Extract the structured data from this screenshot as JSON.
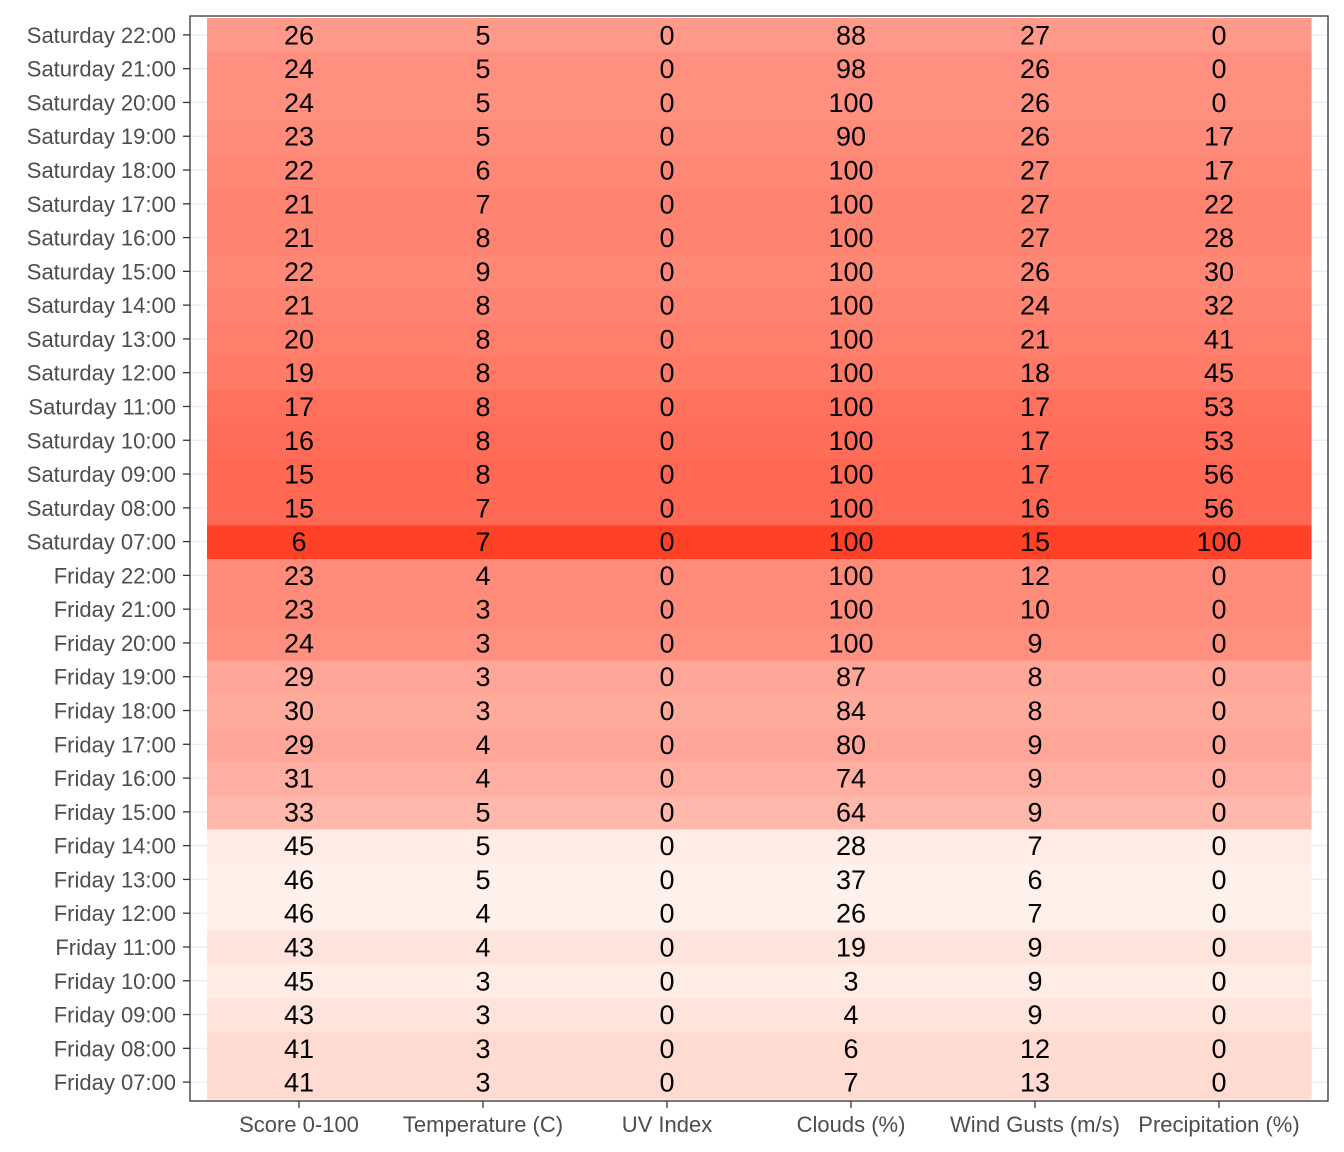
{
  "chart_data": {
    "type": "heatmap",
    "title": "",
    "xlabel": "",
    "ylabel": "",
    "columns": [
      "Score 0-100",
      "Temperature (C)",
      "UV Index",
      "Clouds (%)",
      "Wind Gusts (m/s)",
      "Precipitation (%)"
    ],
    "rows": [
      {
        "label": "Friday 07:00",
        "values": [
          41,
          3,
          0,
          7,
          13,
          0
        ]
      },
      {
        "label": "Friday 08:00",
        "values": [
          41,
          3,
          0,
          6,
          12,
          0
        ]
      },
      {
        "label": "Friday 09:00",
        "values": [
          43,
          3,
          0,
          4,
          9,
          0
        ]
      },
      {
        "label": "Friday 10:00",
        "values": [
          45,
          3,
          0,
          3,
          9,
          0
        ]
      },
      {
        "label": "Friday 11:00",
        "values": [
          43,
          4,
          0,
          19,
          9,
          0
        ]
      },
      {
        "label": "Friday 12:00",
        "values": [
          46,
          4,
          0,
          26,
          7,
          0
        ]
      },
      {
        "label": "Friday 13:00",
        "values": [
          46,
          5,
          0,
          37,
          6,
          0
        ]
      },
      {
        "label": "Friday 14:00",
        "values": [
          45,
          5,
          0,
          28,
          7,
          0
        ]
      },
      {
        "label": "Friday 15:00",
        "values": [
          33,
          5,
          0,
          64,
          9,
          0
        ]
      },
      {
        "label": "Friday 16:00",
        "values": [
          31,
          4,
          0,
          74,
          9,
          0
        ]
      },
      {
        "label": "Friday 17:00",
        "values": [
          29,
          4,
          0,
          80,
          9,
          0
        ]
      },
      {
        "label": "Friday 18:00",
        "values": [
          30,
          3,
          0,
          84,
          8,
          0
        ]
      },
      {
        "label": "Friday 19:00",
        "values": [
          29,
          3,
          0,
          87,
          8,
          0
        ]
      },
      {
        "label": "Friday 20:00",
        "values": [
          24,
          3,
          0,
          100,
          9,
          0
        ]
      },
      {
        "label": "Friday 21:00",
        "values": [
          23,
          3,
          0,
          100,
          10,
          0
        ]
      },
      {
        "label": "Friday 22:00",
        "values": [
          23,
          4,
          0,
          100,
          12,
          0
        ]
      },
      {
        "label": "Saturday 07:00",
        "values": [
          6,
          7,
          0,
          100,
          15,
          100
        ]
      },
      {
        "label": "Saturday 08:00",
        "values": [
          15,
          7,
          0,
          100,
          16,
          56
        ]
      },
      {
        "label": "Saturday 09:00",
        "values": [
          15,
          8,
          0,
          100,
          17,
          56
        ]
      },
      {
        "label": "Saturday 10:00",
        "values": [
          16,
          8,
          0,
          100,
          17,
          53
        ]
      },
      {
        "label": "Saturday 11:00",
        "values": [
          17,
          8,
          0,
          100,
          17,
          53
        ]
      },
      {
        "label": "Saturday 12:00",
        "values": [
          19,
          8,
          0,
          100,
          18,
          45
        ]
      },
      {
        "label": "Saturday 13:00",
        "values": [
          20,
          8,
          0,
          100,
          21,
          41
        ]
      },
      {
        "label": "Saturday 14:00",
        "values": [
          21,
          8,
          0,
          100,
          24,
          32
        ]
      },
      {
        "label": "Saturday 15:00",
        "values": [
          22,
          9,
          0,
          100,
          26,
          30
        ]
      },
      {
        "label": "Saturday 16:00",
        "values": [
          21,
          8,
          0,
          100,
          27,
          28
        ]
      },
      {
        "label": "Saturday 17:00",
        "values": [
          21,
          7,
          0,
          100,
          27,
          22
        ]
      },
      {
        "label": "Saturday 18:00",
        "values": [
          22,
          6,
          0,
          100,
          27,
          17
        ]
      },
      {
        "label": "Saturday 19:00",
        "values": [
          23,
          5,
          0,
          90,
          26,
          17
        ]
      },
      {
        "label": "Saturday 20:00",
        "values": [
          24,
          5,
          0,
          100,
          26,
          0
        ]
      },
      {
        "label": "Saturday 21:00",
        "values": [
          24,
          5,
          0,
          98,
          26,
          0
        ]
      },
      {
        "label": "Saturday 22:00",
        "values": [
          26,
          5,
          0,
          88,
          27,
          0
        ]
      }
    ],
    "color_by": "Score 0-100",
    "color_scale": {
      "low": "#ff4128",
      "high": "#fff1ea"
    },
    "legend": "none",
    "grid": true
  }
}
